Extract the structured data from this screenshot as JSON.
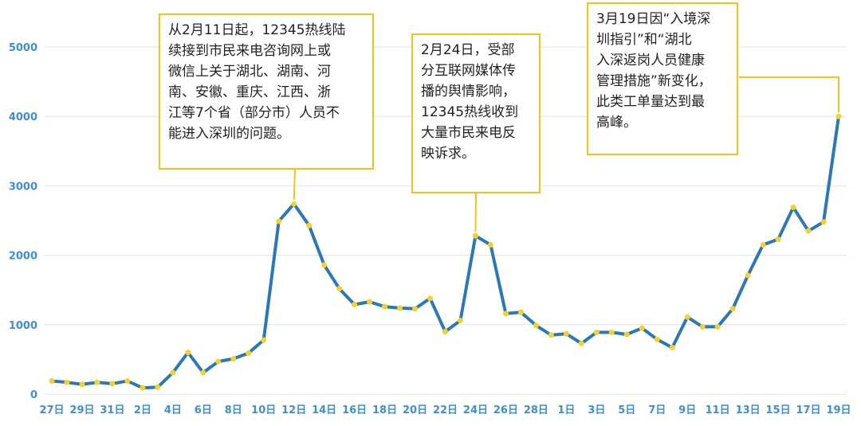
{
  "chart_data": {
    "type": "line",
    "colors": {
      "line": "#2a78b8",
      "point": "#f5d229",
      "grid": "#d6e6f2",
      "tick": "#3d8fd1",
      "annotation_border": "#f2c318"
    },
    "ylim": [
      0,
      5000
    ],
    "yticks": [
      "0",
      "1000",
      "2000",
      "3000",
      "4000",
      "5000"
    ],
    "x_tick_labels": [
      "27日",
      "29日",
      "31日",
      "2日",
      "4日",
      "6日",
      "8日",
      "10日",
      "12日",
      "14日",
      "16日",
      "18日",
      "20日",
      "22日",
      "24日",
      "26日",
      "28日",
      "1日",
      "3日",
      "5日",
      "7日",
      "9日",
      "11日",
      "13日",
      "15日",
      "17日",
      "19日"
    ],
    "x": [
      "1月27日",
      "1月28日",
      "1月29日",
      "1月30日",
      "1月31日",
      "2月1日",
      "2月2日",
      "2月3日",
      "2月4日",
      "2月5日",
      "2月6日",
      "2月7日",
      "2月8日",
      "2月9日",
      "2月10日",
      "2月11日",
      "2月12日",
      "2月13日",
      "2月14日",
      "2月15日",
      "2月16日",
      "2月17日",
      "2月18日",
      "2月19日",
      "2月20日",
      "2月21日",
      "2月22日",
      "2月23日",
      "2月24日",
      "2月25日",
      "2月26日",
      "2月27日",
      "2月28日",
      "2月29日",
      "3月1日",
      "3月2日",
      "3月3日",
      "3月4日",
      "3月5日",
      "3月6日",
      "3月7日",
      "3月8日",
      "3月9日",
      "3月10日",
      "3月11日",
      "3月12日",
      "3月13日",
      "3月14日",
      "3月15日",
      "3月16日",
      "3月17日",
      "3月18日",
      "3月19日"
    ],
    "values": [
      190,
      170,
      140,
      170,
      150,
      190,
      90,
      100,
      310,
      600,
      310,
      470,
      510,
      590,
      780,
      2490,
      2740,
      2430,
      1860,
      1520,
      1290,
      1330,
      1260,
      1240,
      1230,
      1380,
      900,
      1060,
      2280,
      2150,
      1160,
      1180,
      990,
      850,
      870,
      730,
      890,
      890,
      860,
      950,
      790,
      670,
      1110,
      970,
      970,
      1230,
      1710,
      2150,
      2230,
      2690,
      2350,
      2480,
      4000
    ],
    "annotations": [
      {
        "text": "从2月11日起，12345热线陆\n续接到市民来电咨询网上或\n微信上关于湖北、湖南、河\n南、安徽、重庆、江西、浙\n江等7个省（部分市）人员不\n能进入深圳的问题。",
        "point_index": 16
      },
      {
        "text": "2月24日，受部\n分互联网媒体传\n播的舆情影响，\n12345热线收到\n大量市民来电反\n映诉求。",
        "point_index": 28
      },
      {
        "text": "3月19日因“入境深\n圳指引”和“湖北\n入深返岗人员健康\n管理措施”新变化，\n此类工单量达到最\n高峰。",
        "point_index": 52
      }
    ]
  }
}
